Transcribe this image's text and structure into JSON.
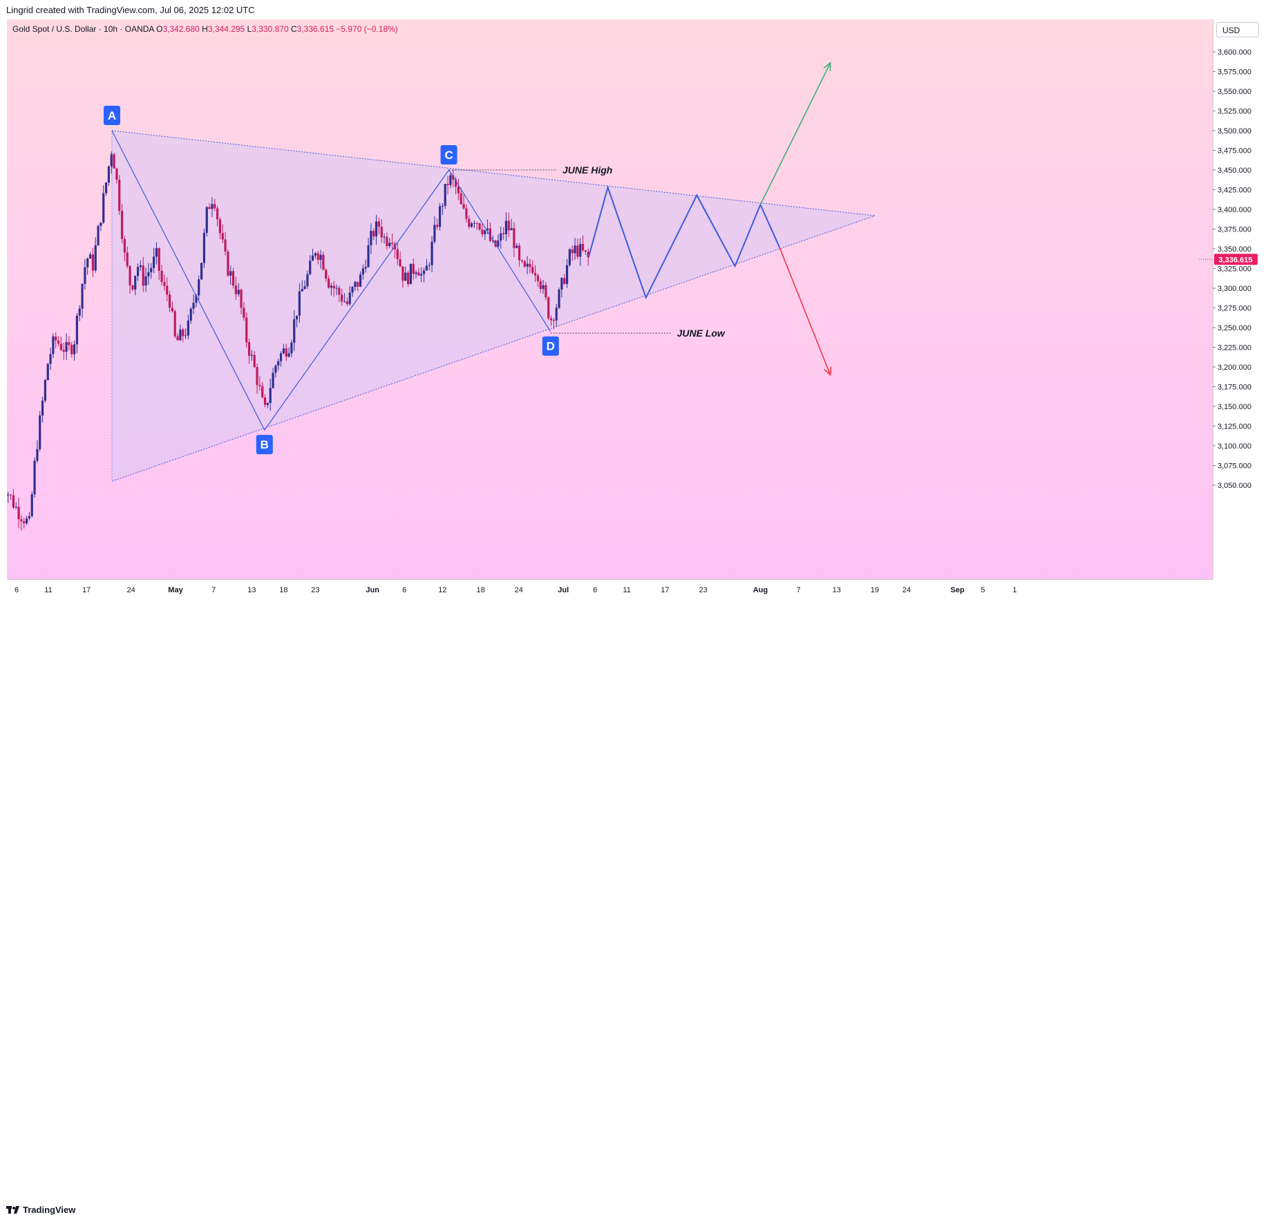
{
  "header": {
    "created_text": "Lingrid created with TradingView.com, Jul 06, 2025 12:02 UTC"
  },
  "legend": {
    "symbol": "Gold Spot / U.S. Dollar · 10h · OANDA",
    "o_label": "O",
    "o_value": "3,342.680",
    "h_label": "H",
    "h_value": "3,344.295",
    "l_label": "L",
    "l_value": "3,330.870",
    "c_label": "C",
    "c_value": "3,336.615",
    "change": "−5.970 (−0.18%)"
  },
  "price_axis": {
    "currency": "USD",
    "current_price_label": "3,336.615",
    "current_price": 3336.615,
    "current_price_color": "#e91e63"
  },
  "footer": {
    "brand": "TradingView"
  },
  "colors": {
    "up_candle": "#2f2f8f",
    "down_candle": "#c2185b",
    "pattern_line": "#3b5bdb",
    "triangle_fill": "#d8c8f4",
    "bull_arrow": "#3bb273",
    "bear_arrow": "#f23645",
    "marker_bg": "#2962ff"
  },
  "chart_data": {
    "type": "candlestick",
    "title": "Gold Spot / U.S. Dollar",
    "interval": "10h",
    "y_ticks": [
      "3,600.000",
      "3,575.000",
      "3,550.000",
      "3,525.000",
      "3,500.000",
      "3,475.000",
      "3,450.000",
      "3,425.000",
      "3,400.000",
      "3,375.000",
      "3,350.000",
      "3,325.000",
      "3,300.000",
      "3,275.000",
      "3,250.000",
      "3,225.000",
      "3,200.000",
      "3,175.000",
      "3,150.000",
      "3,125.000",
      "3,100.000",
      "3,075.000",
      "3,050.000"
    ],
    "y_tick_values": [
      3600,
      3575,
      3550,
      3525,
      3500,
      3475,
      3450,
      3425,
      3400,
      3375,
      3350,
      3325,
      3300,
      3275,
      3250,
      3225,
      3200,
      3175,
      3150,
      3125,
      3100,
      3075,
      3050
    ],
    "ylim": [
      3037,
      3640
    ],
    "x_ticks": [
      {
        "label": "6",
        "date": "2025-04-06",
        "bold": false
      },
      {
        "label": "11",
        "date": "2025-04-11",
        "bold": false
      },
      {
        "label": "17",
        "date": "2025-04-17",
        "bold": false
      },
      {
        "label": "24",
        "date": "2025-04-24",
        "bold": false
      },
      {
        "label": "May",
        "date": "2025-05-01",
        "bold": true
      },
      {
        "label": "7",
        "date": "2025-05-07",
        "bold": false
      },
      {
        "label": "13",
        "date": "2025-05-13",
        "bold": false
      },
      {
        "label": "18",
        "date": "2025-05-18",
        "bold": false
      },
      {
        "label": "23",
        "date": "2025-05-23",
        "bold": false
      },
      {
        "label": "Jun",
        "date": "2025-06-01",
        "bold": true
      },
      {
        "label": "6",
        "date": "2025-06-06",
        "bold": false
      },
      {
        "label": "12",
        "date": "2025-06-12",
        "bold": false
      },
      {
        "label": "18",
        "date": "2025-06-18",
        "bold": false
      },
      {
        "label": "24",
        "date": "2025-06-24",
        "bold": false
      },
      {
        "label": "Jul",
        "date": "2025-07-01",
        "bold": true
      },
      {
        "label": "6",
        "date": "2025-07-06",
        "bold": false
      },
      {
        "label": "11",
        "date": "2025-07-11",
        "bold": false
      },
      {
        "label": "17",
        "date": "2025-07-17",
        "bold": false
      },
      {
        "label": "23",
        "date": "2025-07-23",
        "bold": false
      },
      {
        "label": "Aug",
        "date": "2025-08-01",
        "bold": true
      },
      {
        "label": "7",
        "date": "2025-08-07",
        "bold": false
      },
      {
        "label": "13",
        "date": "2025-08-13",
        "bold": false
      },
      {
        "label": "19",
        "date": "2025-08-19",
        "bold": false
      },
      {
        "label": "24",
        "date": "2025-08-24",
        "bold": false
      },
      {
        "label": "Sep",
        "date": "2025-09-01",
        "bold": true
      },
      {
        "label": "5",
        "date": "2025-09-05",
        "bold": false
      },
      {
        "label": "1",
        "date": "2025-09-10",
        "bold": false
      }
    ],
    "close_path": [
      [
        "2025-04-03",
        3100
      ],
      [
        "2025-04-04",
        3050
      ],
      [
        "2025-04-06",
        3020
      ],
      [
        "2025-04-08",
        3000
      ],
      [
        "2025-04-09",
        3090
      ],
      [
        "2025-04-10",
        3150
      ],
      [
        "2025-04-11",
        3210
      ],
      [
        "2025-04-12",
        3235
      ],
      [
        "2025-04-14",
        3220
      ],
      [
        "2025-04-15",
        3230
      ],
      [
        "2025-04-16",
        3290
      ],
      [
        "2025-04-17",
        3340
      ],
      [
        "2025-04-18",
        3330
      ],
      [
        "2025-04-19",
        3380
      ],
      [
        "2025-04-20",
        3430
      ],
      [
        "2025-04-21",
        3480
      ],
      [
        "2025-04-22",
        3420
      ],
      [
        "2025-04-23",
        3340
      ],
      [
        "2025-04-24",
        3300
      ],
      [
        "2025-04-25",
        3330
      ],
      [
        "2025-04-26",
        3310
      ],
      [
        "2025-04-28",
        3340
      ],
      [
        "2025-04-29",
        3300
      ],
      [
        "2025-04-30",
        3290
      ],
      [
        "2025-05-01",
        3230
      ],
      [
        "2025-05-02",
        3240
      ],
      [
        "2025-05-03",
        3250
      ],
      [
        "2025-05-05",
        3330
      ],
      [
        "2025-05-06",
        3400
      ],
      [
        "2025-05-07",
        3420
      ],
      [
        "2025-05-08",
        3370
      ],
      [
        "2025-05-09",
        3330
      ],
      [
        "2025-05-10",
        3310
      ],
      [
        "2025-05-11",
        3290
      ],
      [
        "2025-05-12",
        3240
      ],
      [
        "2025-05-13",
        3210
      ],
      [
        "2025-05-14",
        3180
      ],
      [
        "2025-05-15",
        3140
      ],
      [
        "2025-05-16",
        3180
      ],
      [
        "2025-05-17",
        3210
      ],
      [
        "2025-05-18",
        3220
      ],
      [
        "2025-05-19",
        3230
      ],
      [
        "2025-05-20",
        3270
      ],
      [
        "2025-05-21",
        3300
      ],
      [
        "2025-05-22",
        3320
      ],
      [
        "2025-05-23",
        3350
      ],
      [
        "2025-05-24",
        3340
      ],
      [
        "2025-05-25",
        3310
      ],
      [
        "2025-05-26",
        3300
      ],
      [
        "2025-05-27",
        3290
      ],
      [
        "2025-05-28",
        3280
      ],
      [
        "2025-05-29",
        3300
      ],
      [
        "2025-05-30",
        3310
      ],
      [
        "2025-05-31",
        3340
      ],
      [
        "2025-06-01",
        3370
      ],
      [
        "2025-06-02",
        3380
      ],
      [
        "2025-06-03",
        3360
      ],
      [
        "2025-06-04",
        3370
      ],
      [
        "2025-06-05",
        3340
      ],
      [
        "2025-06-06",
        3310
      ],
      [
        "2025-06-07",
        3320
      ],
      [
        "2025-06-08",
        3330
      ],
      [
        "2025-06-09",
        3310
      ],
      [
        "2025-06-10",
        3340
      ],
      [
        "2025-06-11",
        3380
      ],
      [
        "2025-06-12",
        3410
      ],
      [
        "2025-06-13",
        3440
      ],
      [
        "2025-06-14",
        3430
      ],
      [
        "2025-06-15",
        3400
      ],
      [
        "2025-06-16",
        3385
      ],
      [
        "2025-06-17",
        3390
      ],
      [
        "2025-06-18",
        3380
      ],
      [
        "2025-06-19",
        3370
      ],
      [
        "2025-06-20",
        3350
      ],
      [
        "2025-06-21",
        3360
      ],
      [
        "2025-06-22",
        3380
      ],
      [
        "2025-06-23",
        3370
      ],
      [
        "2025-06-24",
        3330
      ],
      [
        "2025-06-25",
        3320
      ],
      [
        "2025-06-26",
        3330
      ],
      [
        "2025-06-27",
        3320
      ],
      [
        "2025-06-28",
        3290
      ],
      [
        "2025-06-29",
        3260
      ],
      [
        "2025-06-30",
        3280
      ],
      [
        "2025-07-01",
        3310
      ],
      [
        "2025-07-02",
        3340
      ],
      [
        "2025-07-03",
        3350
      ],
      [
        "2025-07-04",
        3345
      ],
      [
        "2025-07-05",
        3336.6
      ]
    ],
    "points": [
      {
        "label": "A",
        "date": "2025-04-21",
        "price": 3500,
        "label_side": "above"
      },
      {
        "label": "B",
        "date": "2025-05-15",
        "price": 3120,
        "label_side": "below"
      },
      {
        "label": "C",
        "date": "2025-06-13",
        "price": 3450,
        "label_side": "above"
      },
      {
        "label": "D",
        "date": "2025-06-29",
        "price": 3245,
        "label_side": "below"
      }
    ],
    "triangle": {
      "upper_start": [
        "2025-04-21",
        3500
      ],
      "lower_start": [
        "2025-04-21",
        3055
      ],
      "apex": [
        "2025-08-19",
        3392
      ]
    },
    "projection_zigzag": [
      [
        "2025-07-05",
        3340
      ],
      [
        "2025-07-08",
        3428
      ],
      [
        "2025-07-14",
        3288
      ],
      [
        "2025-07-22",
        3418
      ],
      [
        "2025-07-28",
        3328
      ],
      [
        "2025-08-01",
        3406
      ],
      [
        "2025-08-04",
        3352
      ]
    ],
    "bull_target": {
      "from": [
        "2025-08-01",
        3406
      ],
      "to": [
        "2025-08-12",
        3586
      ]
    },
    "bear_target": {
      "from": [
        "2025-08-04",
        3352
      ],
      "to": [
        "2025-08-12",
        3190
      ]
    },
    "annotations": [
      {
        "text": "JUNE High",
        "date_from": "2025-06-13",
        "date_to": "2025-06-30",
        "price": 3450
      },
      {
        "text": "JUNE Low",
        "date_from": "2025-06-29",
        "date_to": "2025-07-18",
        "price": 3243
      }
    ]
  }
}
